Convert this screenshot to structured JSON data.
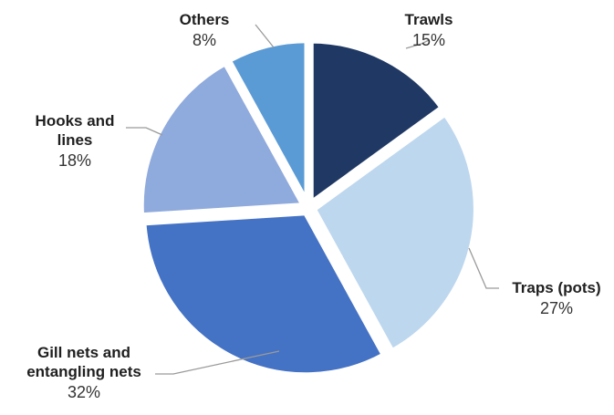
{
  "chart_data": {
    "type": "pie",
    "title": "",
    "slices": [
      {
        "label_lines": [
          "Trawls"
        ],
        "value": 15,
        "value_label": "15%",
        "color": "#203864"
      },
      {
        "label_lines": [
          "Traps (pots)"
        ],
        "value": 27,
        "value_label": "27%",
        "color": "#bdd7ee"
      },
      {
        "label_lines": [
          "Gill nets and",
          "entangling nets"
        ],
        "value": 32,
        "value_label": "32%",
        "color": "#4472c4"
      },
      {
        "label_lines": [
          "Hooks and",
          "lines"
        ],
        "value": 18,
        "value_label": "18%",
        "color": "#8faadc"
      },
      {
        "label_lines": [
          "Others"
        ],
        "value": 8,
        "value_label": "8%",
        "color": "#5b9bd5"
      }
    ]
  }
}
